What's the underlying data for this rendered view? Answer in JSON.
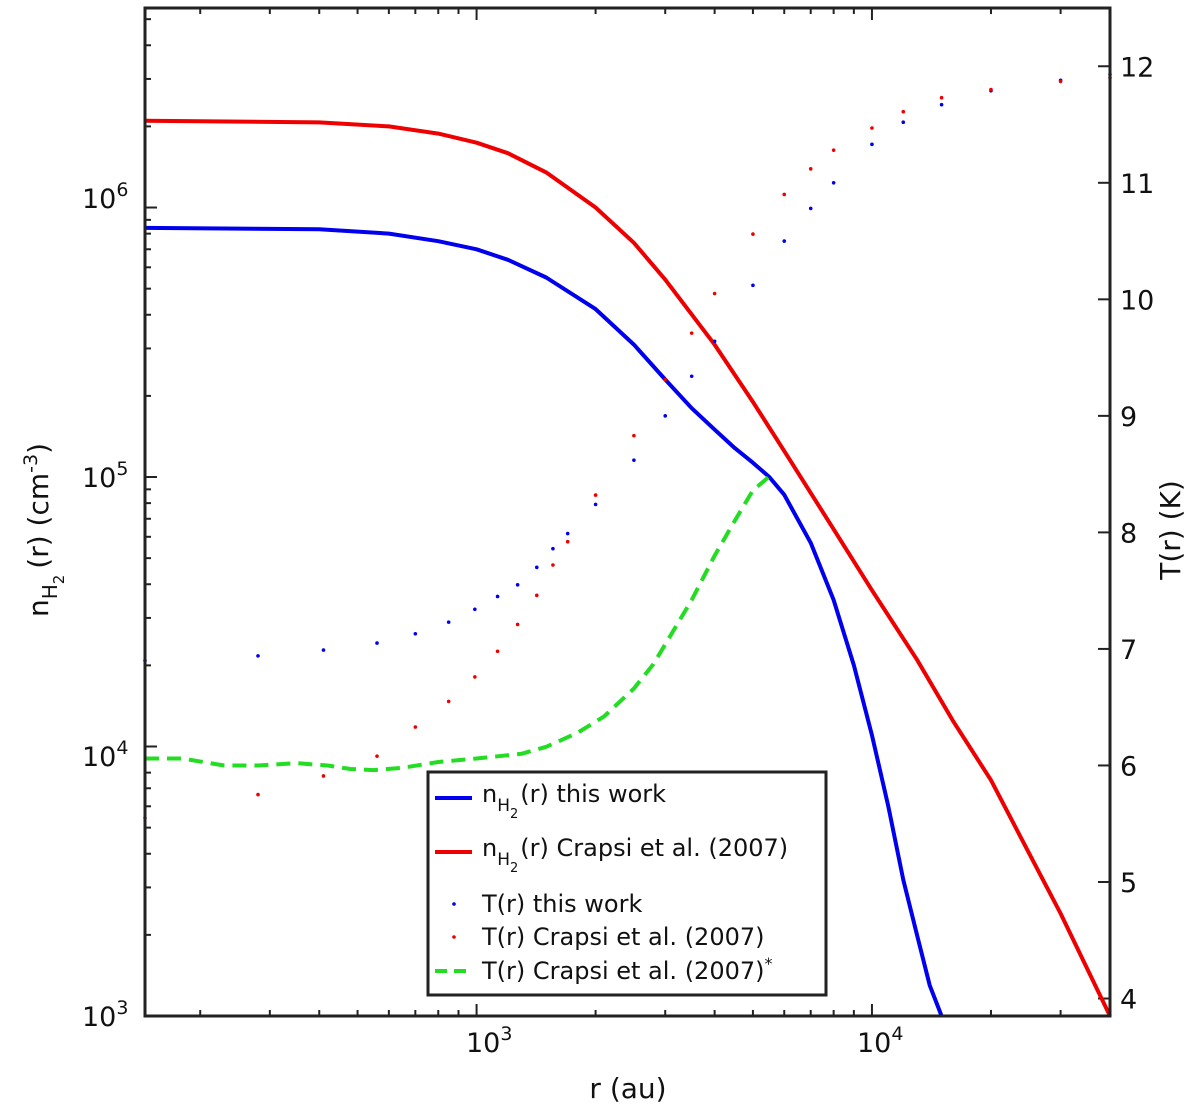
{
  "chart_data": {
    "type": "line",
    "xlabel": "r (au)",
    "ylabel_left": "n_H2(r) (cm^-3)",
    "ylabel_right": "T(r) (K)",
    "xscale": "log",
    "xlim": [
      145,
      40000
    ],
    "yleft": {
      "scale": "log",
      "lim": [
        1000,
        5500000
      ],
      "ticks": [
        1000,
        10000,
        100000,
        1000000
      ]
    },
    "yright": {
      "scale": "linear",
      "lim": [
        3.85,
        12.5
      ],
      "ticks": [
        4,
        5,
        6,
        7,
        8,
        9,
        10,
        11,
        12
      ]
    },
    "x_tick_labels": [
      {
        "value": 1000,
        "mantissa": "10",
        "exp": "3"
      },
      {
        "value": 10000,
        "mantissa": "10",
        "exp": "4"
      }
    ],
    "yleft_tick_labels": [
      {
        "value": 1000,
        "mantissa": "10",
        "exp": "3"
      },
      {
        "value": 10000,
        "mantissa": "10",
        "exp": "4"
      },
      {
        "value": 100000,
        "mantissa": "10",
        "exp": "5"
      },
      {
        "value": 1000000,
        "mantissa": "10",
        "exp": "6"
      }
    ],
    "axis_labels": {
      "x": "r (au)",
      "yleft_n": "n",
      "yleft_sub": "H",
      "yleft_subsub": "2",
      "yleft_rest": "(r) (cm",
      "yleft_exp": "-3",
      "yleft_close": ")",
      "yright": "T(r) (K)"
    },
    "series": [
      {
        "name": "n_H2(r) this work",
        "axis": "left",
        "style": "solid",
        "color": "#0000ee",
        "x": [
          145,
          400,
          600,
          800,
          1000,
          1200,
          1500,
          2000,
          2500,
          3000,
          3500,
          4000,
          4500,
          5000,
          5500,
          6000,
          7000,
          8000,
          9000,
          10000,
          11000,
          12000,
          13000,
          14000,
          15000
        ],
        "y": [
          840000,
          830000,
          800000,
          750000,
          700000,
          640000,
          550000,
          420000,
          310000,
          230000,
          180000,
          150000,
          128000,
          113000,
          100000,
          86000,
          57000,
          35000,
          20000,
          11000,
          6000,
          3200,
          2000,
          1300,
          1000
        ]
      },
      {
        "name": "n_H2(r) Crapsi et al. (2007)",
        "axis": "left",
        "style": "solid",
        "color": "#ee0000",
        "x": [
          145,
          400,
          600,
          800,
          1000,
          1200,
          1500,
          2000,
          2500,
          3000,
          4000,
          5000,
          6000,
          8000,
          10000,
          13000,
          16000,
          20000,
          25000,
          30000,
          35000,
          40000
        ],
        "y": [
          2100000,
          2070000,
          2000000,
          1880000,
          1740000,
          1590000,
          1350000,
          1000000,
          740000,
          540000,
          310000,
          190000,
          125000,
          64000,
          38000,
          21000,
          12500,
          7500,
          4000,
          2400,
          1500,
          950
        ]
      },
      {
        "name": "T(r) this work",
        "axis": "right",
        "style": "dots",
        "color": "#0000ee",
        "x": [
          145,
          280,
          410,
          560,
          700,
          850,
          990,
          1130,
          1270,
          1420,
          1560,
          1700,
          2000,
          2500,
          3000,
          3500,
          4000,
          5000,
          6000,
          7000,
          8000,
          10000,
          12000,
          15000,
          20000,
          30000,
          40000
        ],
        "y": [
          6.9,
          6.94,
          6.99,
          7.05,
          7.13,
          7.23,
          7.34,
          7.45,
          7.55,
          7.7,
          7.86,
          7.99,
          8.24,
          8.62,
          9.0,
          9.34,
          9.64,
          10.12,
          10.5,
          10.78,
          11.0,
          11.33,
          11.52,
          11.67,
          11.79,
          11.88,
          11.93
        ]
      },
      {
        "name": "T(r) Crapsi et al. (2007)",
        "axis": "right",
        "style": "dots",
        "color": "#ee0000",
        "x": [
          145,
          280,
          410,
          560,
          700,
          850,
          990,
          1130,
          1270,
          1420,
          1560,
          1700,
          2000,
          2500,
          3000,
          3500,
          4000,
          5000,
          6000,
          7000,
          8000,
          10000,
          12000,
          15000,
          20000,
          30000,
          40000
        ],
        "y": [
          5.55,
          5.75,
          5.91,
          6.08,
          6.33,
          6.55,
          6.76,
          6.98,
          7.21,
          7.46,
          7.72,
          7.92,
          8.32,
          8.83,
          9.31,
          9.71,
          10.05,
          10.56,
          10.9,
          11.12,
          11.28,
          11.47,
          11.61,
          11.73,
          11.8,
          11.87,
          11.9
        ]
      },
      {
        "name": "T(r) Crapsi et al. (2007)*",
        "axis": "right",
        "style": "dashed",
        "color": "#22dd22",
        "x": [
          145,
          180,
          230,
          280,
          350,
          420,
          480,
          550,
          650,
          800,
          1000,
          1300,
          1500,
          1800,
          2100,
          2500,
          2800,
          3100,
          3500,
          4000,
          4500,
          5000,
          5500
        ],
        "y": [
          6.06,
          6.06,
          6.0,
          6.0,
          6.02,
          6.0,
          5.97,
          5.96,
          5.98,
          6.03,
          6.06,
          6.1,
          6.16,
          6.28,
          6.42,
          6.66,
          6.87,
          7.12,
          7.42,
          7.8,
          8.1,
          8.36,
          8.48
        ]
      }
    ],
    "legend": {
      "position": "bottom-center",
      "entries": [
        {
          "text": "(r) this work",
          "prefix": "n",
          "sub": "H",
          "subsub": "2",
          "sup": ""
        },
        {
          "text": "(r) Crapsi et al. (2007)",
          "prefix": "n",
          "sub": "H",
          "subsub": "2",
          "sup": ""
        },
        {
          "text": "T(r) this work",
          "prefix": "",
          "sub": "",
          "subsub": "",
          "sup": ""
        },
        {
          "text": "T(r) Crapsi et al. (2007)",
          "prefix": "",
          "sub": "",
          "subsub": "",
          "sup": ""
        },
        {
          "text": "T(r) Crapsi et al. (2007)",
          "prefix": "",
          "sub": "",
          "subsub": "",
          "sup": "*"
        }
      ]
    }
  }
}
